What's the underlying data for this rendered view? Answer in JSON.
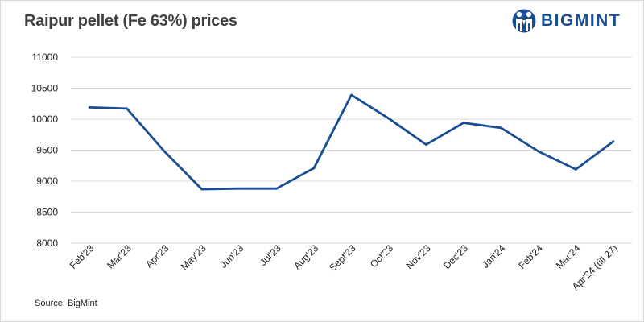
{
  "header": {
    "title": "Raipur pellet (Fe 63%) prices",
    "brand": "BIGMINT"
  },
  "footer": {
    "source": "Source: BigMint"
  },
  "colors": {
    "line": "#1a4e93",
    "grid": "#d9d9d9",
    "brand": "#1a4e93"
  },
  "chart_data": {
    "type": "line",
    "title": "Raipur pellet (Fe 63%) prices",
    "xlabel": "",
    "ylabel": "",
    "categories": [
      "Feb'23",
      "Mar'23",
      "Apr'23",
      "May'23",
      "Jun'23",
      "Jul'23",
      "Aug'23",
      "Sept'23",
      "Oct'23",
      "Nov'23",
      "Dec'23",
      "Jan'24",
      "Feb'24",
      "Mar'24",
      "Apr'24 (till 27)"
    ],
    "series": [
      {
        "values": [
          10190,
          10170,
          9480,
          8870,
          8880,
          8880,
          9210,
          10390,
          10010,
          9590,
          9940,
          9860,
          9480,
          9190,
          9640
        ]
      }
    ],
    "ylim": [
      8000,
      11000
    ],
    "yticks": [
      8000,
      8500,
      9000,
      9500,
      10000,
      10500,
      11000
    ],
    "grid": true,
    "legend": "none"
  }
}
